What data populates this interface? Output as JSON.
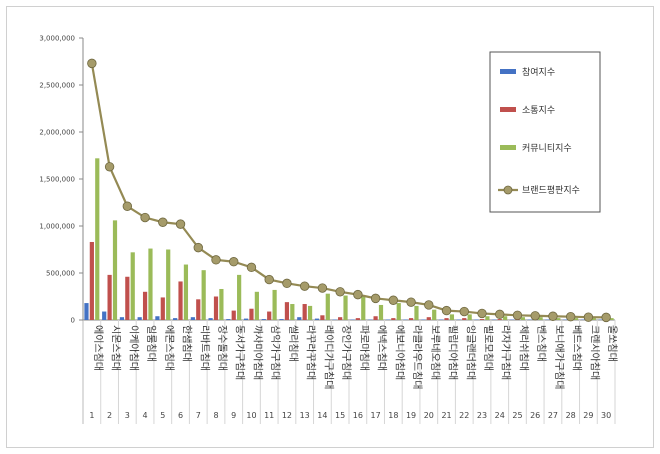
{
  "chart_data": {
    "type": "bar",
    "title": "",
    "xlabel": "",
    "ylabel": "",
    "ylim": [
      0,
      3000000
    ],
    "yticks": [
      "0",
      "500,000",
      "1,000,000",
      "1,500,000",
      "2,000,000",
      "2,500,000",
      "3,000,000"
    ],
    "grid": false,
    "legend_position": "top-right",
    "categories": [
      "에이스침대",
      "시몬스침대",
      "이케아침대",
      "일룸침대",
      "에몬스침대",
      "한샘침대",
      "리바트침대",
      "장수돌침대",
      "동서가구침대",
      "까사미아침대",
      "삼익가구침대",
      "씰리침대",
      "라꾸라꾸침대",
      "레이디가구침대",
      "장인가구침대",
      "파로마침대",
      "에넥스침대",
      "에보니아침대",
      "라클라우드침대",
      "보루네오침대",
      "필립디아침대",
      "잉글랜더침대",
      "필로모침대",
      "라자가구침대",
      "체리쉬침대",
      "벤스침대",
      "보니애가구침대",
      "베드스침대",
      "크렌시아침대",
      "올쏘침대"
    ],
    "ranks": [
      "1",
      "2",
      "3",
      "4",
      "5",
      "6",
      "7",
      "8",
      "9",
      "10",
      "11",
      "12",
      "13",
      "14",
      "15",
      "16",
      "17",
      "18",
      "19",
      "20",
      "21",
      "22",
      "23",
      "24",
      "25",
      "26",
      "27",
      "28",
      "29",
      "30"
    ],
    "series": [
      {
        "name": "참여지수",
        "type": "bar",
        "color": "#4472c4",
        "values": [
          180000,
          90000,
          30000,
          30000,
          40000,
          20000,
          30000,
          20000,
          10000,
          15000,
          10000,
          10000,
          30000,
          15000,
          5000,
          5000,
          5000,
          5000,
          5000,
          5000,
          3000,
          3000,
          3000,
          3000,
          2000,
          2000,
          2000,
          2000,
          1000,
          1000
        ]
      },
      {
        "name": "소통지수",
        "type": "bar",
        "color": "#c0504d",
        "values": [
          830000,
          480000,
          460000,
          300000,
          240000,
          410000,
          220000,
          250000,
          100000,
          120000,
          90000,
          190000,
          170000,
          50000,
          30000,
          20000,
          40000,
          20000,
          20000,
          30000,
          20000,
          20000,
          10000,
          10000,
          10000,
          10000,
          10000,
          10000,
          10000,
          10000
        ]
      },
      {
        "name": "커뮤니티지수",
        "type": "bar",
        "color": "#9bbb59",
        "values": [
          1720000,
          1060000,
          720000,
          760000,
          750000,
          590000,
          530000,
          330000,
          480000,
          300000,
          320000,
          170000,
          150000,
          280000,
          260000,
          250000,
          160000,
          180000,
          150000,
          110000,
          60000,
          60000,
          40000,
          40000,
          30000,
          30000,
          20000,
          20000,
          20000,
          20000
        ]
      },
      {
        "name": "브랜드평판지수",
        "type": "line",
        "color": "#948a54",
        "values": [
          2730000,
          1630000,
          1210000,
          1090000,
          1040000,
          1020000,
          770000,
          640000,
          620000,
          560000,
          430000,
          390000,
          360000,
          340000,
          300000,
          270000,
          230000,
          210000,
          190000,
          160000,
          100000,
          90000,
          70000,
          60000,
          50000,
          45000,
          40000,
          35000,
          30000,
          28000
        ]
      }
    ]
  }
}
